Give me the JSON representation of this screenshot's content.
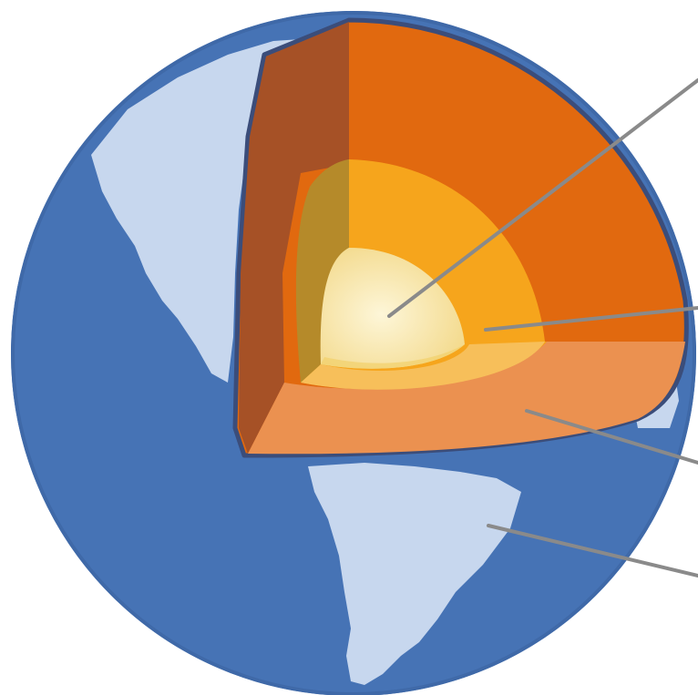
{
  "diagram": {
    "subject": "earth-layers-cutaway",
    "layers": [
      {
        "id": "inner-core",
        "color": "#f8e39a"
      },
      {
        "id": "outer-core",
        "color": "#f6a51c"
      },
      {
        "id": "mantle",
        "color": "#e1690f"
      },
      {
        "id": "crust",
        "color": "#eb9150"
      }
    ],
    "ocean_color": "#4673b5",
    "land_color": "#c7d7ee",
    "leader_line_color": "#8a8a8a",
    "callout_count": 4
  }
}
